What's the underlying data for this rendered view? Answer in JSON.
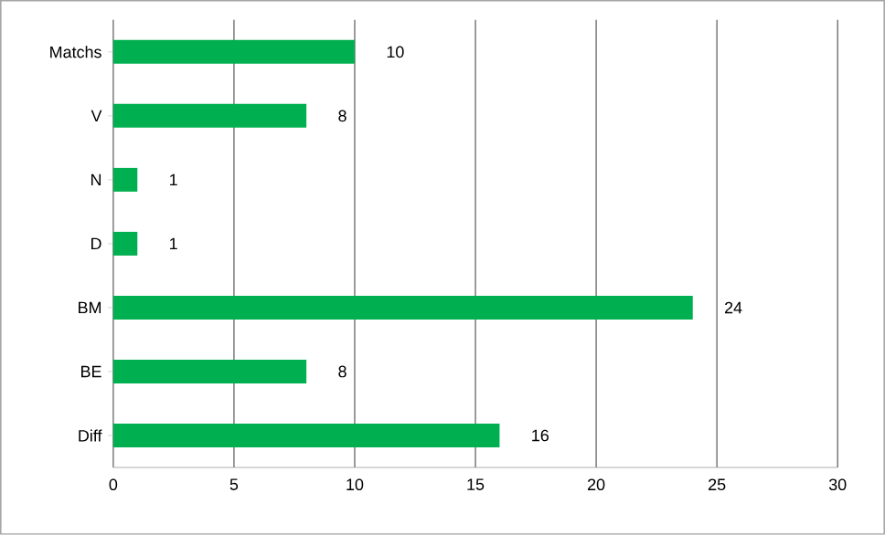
{
  "chart_data": {
    "type": "bar",
    "orientation": "horizontal",
    "categories": [
      "Matchs",
      "V",
      "N",
      "D",
      "BM",
      "BE",
      "Diff"
    ],
    "values": [
      10,
      8,
      1,
      1,
      24,
      8,
      16
    ],
    "color": "#00b050",
    "xlim": [
      0,
      30
    ],
    "xticks": [
      0,
      5,
      10,
      15,
      20,
      25,
      30
    ],
    "grid": "x",
    "data_labels": true
  }
}
